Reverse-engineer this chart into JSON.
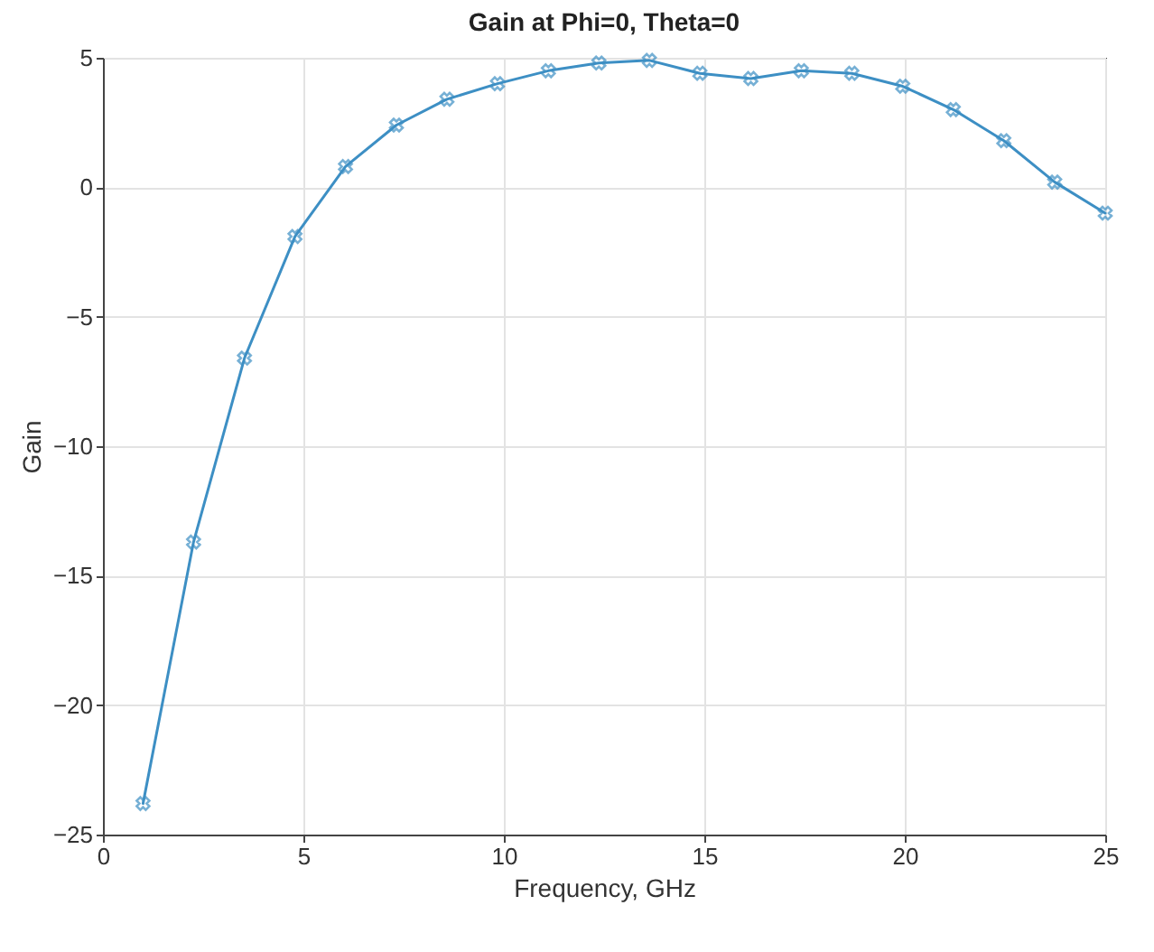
{
  "chart_data": {
    "type": "line",
    "title": "Gain at Phi=0, Theta=0",
    "xlabel": "Frequency, GHz",
    "ylabel": "Gain",
    "x": [
      1,
      2.26,
      3.53,
      4.79,
      6.05,
      7.32,
      8.58,
      9.84,
      11.11,
      12.37,
      13.63,
      14.89,
      16.16,
      17.42,
      18.68,
      19.95,
      21.21,
      22.47,
      23.74,
      25
    ],
    "series": [
      {
        "color": "#3d8fc4",
        "values": [
          -23.8,
          -13.7,
          -6.6,
          -1.9,
          0.8,
          2.4,
          3.4,
          4.0,
          4.5,
          4.8,
          4.9,
          4.4,
          4.2,
          4.5,
          4.4,
          3.9,
          3.0,
          1.8,
          0.2,
          -1.0
        ]
      }
    ],
    "xlim": [
      0,
      25
    ],
    "xticks": [
      0,
      5,
      10,
      15,
      20,
      25
    ],
    "ylim": [
      -25,
      5
    ],
    "yticks": [
      -25,
      -20,
      -15,
      -10,
      -5,
      0,
      5
    ],
    "grid": true,
    "marker": "cross",
    "line_style": "solid"
  }
}
